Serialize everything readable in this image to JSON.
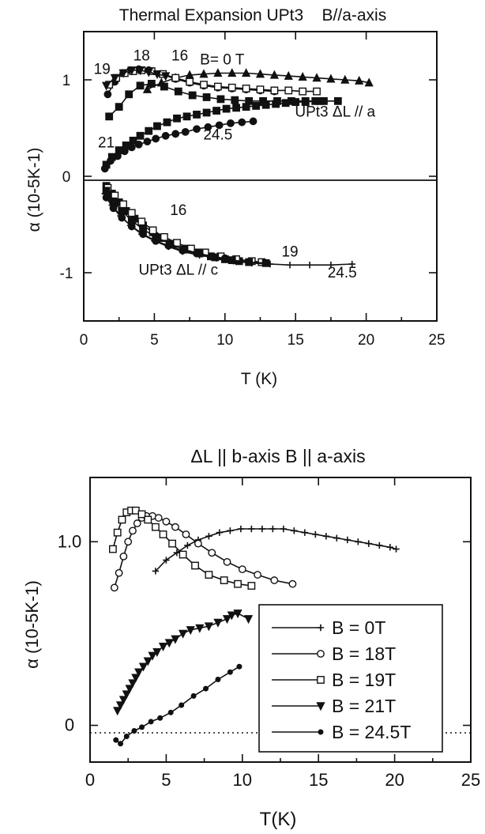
{
  "chart_data": [
    {
      "type": "line",
      "title": "Thermal Expansion UPt3    B//a-axis",
      "xlabel": "T (K)",
      "ylabel": "α (10-5K-1)",
      "xlim": [
        0,
        25
      ],
      "ylim": [
        -1.5,
        1.5
      ],
      "xticks": [
        "0",
        "5",
        "10",
        "15",
        "20",
        "25"
      ],
      "yticks": [
        {
          "value": 1,
          "label": "1"
        },
        {
          "value": 0,
          "label": "0"
        },
        {
          "value": -1,
          "label": "-1"
        }
      ],
      "grid": false,
      "zero_line": "solid",
      "annotations": [
        {
          "text": "B= 0 T",
          "x": 9.8,
          "y": 1.16
        },
        {
          "text": "19",
          "x": 1.3,
          "y": 1.06
        },
        {
          "text": "18",
          "x": 4.1,
          "y": 1.2
        },
        {
          "text": "16",
          "x": 6.8,
          "y": 1.2
        },
        {
          "text": "UPt3  ΔL // a",
          "x": 17.8,
          "y": 0.62
        },
        {
          "text": "21",
          "x": 1.6,
          "y": 0.3
        },
        {
          "text": "24.5",
          "x": 9.5,
          "y": 0.38
        },
        {
          "text": "16",
          "x": 6.7,
          "y": -0.4
        },
        {
          "text": "19",
          "x": 14.6,
          "y": -0.83
        },
        {
          "text": "UPt3  ΔL // c",
          "x": 6.7,
          "y": -1.02
        },
        {
          "text": "24.5",
          "x": 18.3,
          "y": -1.05
        }
      ],
      "series": [
        {
          "marker": "triangle-up",
          "x": [
            4.5,
            5.5,
            6.5,
            7.5,
            8.5,
            9.5,
            10.5,
            11.5,
            12.5,
            13.5,
            14.5,
            15.5,
            16.5,
            17.5,
            18.5,
            19.5,
            20.2
          ],
          "y": [
            0.9,
            0.97,
            1.02,
            1.05,
            1.06,
            1.07,
            1.07,
            1.07,
            1.06,
            1.05,
            1.04,
            1.03,
            1.02,
            1.01,
            1.0,
            0.99,
            0.97
          ]
        },
        {
          "marker": "circle",
          "x": [
            1.7,
            2.2,
            2.8,
            3.3,
            3.9,
            4.6,
            5.5,
            6.5,
            7.5,
            8.5,
            9.5,
            10.5,
            11.5,
            12.5,
            13.5
          ],
          "y": [
            0.85,
            0.98,
            1.07,
            1.1,
            1.11,
            1.1,
            1.06,
            1.01,
            0.97,
            0.94,
            0.92,
            0.91,
            0.9,
            0.89,
            0.88
          ]
        },
        {
          "marker": "square-open",
          "x": [
            1.8,
            2.3,
            2.9,
            3.5,
            4.1,
            4.8,
            5.6,
            6.5,
            7.5,
            8.5,
            9.5,
            10.5,
            11.5,
            12.5,
            13.5,
            14.5,
            15.5,
            16.5
          ],
          "y": [
            0.95,
            1.02,
            1.07,
            1.09,
            1.1,
            1.09,
            1.06,
            1.02,
            0.98,
            0.95,
            0.93,
            0.92,
            0.91,
            0.9,
            0.89,
            0.89,
            0.88,
            0.88
          ]
        },
        {
          "marker": "triangle-down",
          "x": [
            1.6,
            2.2,
            2.8,
            3.4,
            4.0,
            4.6,
            5.2,
            5.8
          ],
          "y": [
            0.94,
            1.02,
            1.07,
            1.1,
            1.1,
            1.08,
            1.06,
            1.04
          ]
        },
        {
          "marker": "square",
          "x": [
            1.8,
            2.5,
            3.2,
            4.0,
            4.8,
            5.7,
            6.7,
            7.7,
            8.7,
            9.7,
            10.7,
            11.7,
            12.7,
            13.7,
            14.7,
            15.7,
            16.7,
            18.0
          ],
          "y": [
            0.62,
            0.72,
            0.85,
            0.94,
            0.96,
            0.93,
            0.88,
            0.84,
            0.82,
            0.8,
            0.79,
            0.78,
            0.78,
            0.78,
            0.78,
            0.78,
            0.78,
            0.78
          ]
        },
        {
          "marker": "square",
          "x": [
            1.6,
            2.0,
            2.5,
            3.0,
            3.5,
            4.0,
            4.6,
            5.2,
            5.9,
            6.6,
            7.3,
            8.0,
            8.7,
            9.4,
            10.1,
            10.8,
            11.5,
            12.2,
            12.9,
            13.6,
            14.3,
            15.0,
            15.7,
            16.4,
            17.0
          ],
          "y": [
            0.12,
            0.2,
            0.27,
            0.32,
            0.37,
            0.42,
            0.47,
            0.52,
            0.56,
            0.6,
            0.62,
            0.64,
            0.66,
            0.68,
            0.7,
            0.71,
            0.72,
            0.73,
            0.74,
            0.75,
            0.76,
            0.77,
            0.77,
            0.78,
            0.78
          ]
        },
        {
          "marker": "circle",
          "x": [
            1.5,
            1.9,
            2.4,
            2.9,
            3.4,
            3.9,
            4.5,
            5.1,
            5.8,
            6.5,
            7.2,
            8.0,
            8.8,
            9.6,
            10.4,
            11.2,
            12.0
          ],
          "y": [
            0.08,
            0.16,
            0.21,
            0.26,
            0.3,
            0.33,
            0.36,
            0.39,
            0.42,
            0.44,
            0.46,
            0.49,
            0.51,
            0.53,
            0.55,
            0.56,
            0.57
          ]
        },
        {
          "marker": "square",
          "x": [
            1.6,
            2.0,
            2.5,
            3.0,
            3.6,
            4.2,
            4.9,
            5.6,
            6.4,
            7.2,
            8.1,
            9.0,
            10.0,
            11.0
          ],
          "y": [
            -0.1,
            -0.18,
            -0.27,
            -0.36,
            -0.44,
            -0.51,
            -0.58,
            -0.64,
            -0.7,
            -0.75,
            -0.79,
            -0.83,
            -0.86,
            -0.88
          ]
        },
        {
          "marker": "square-open",
          "x": [
            1.7,
            2.2,
            2.8,
            3.4,
            4.1,
            4.9,
            5.7,
            6.6,
            7.6,
            8.6,
            9.7,
            10.8,
            11.9,
            12.6
          ],
          "y": [
            -0.12,
            -0.2,
            -0.29,
            -0.38,
            -0.47,
            -0.56,
            -0.63,
            -0.69,
            -0.75,
            -0.79,
            -0.83,
            -0.86,
            -0.88,
            -0.89
          ]
        },
        {
          "marker": "square",
          "x": [
            1.6,
            2.1,
            2.7,
            3.4,
            4.2,
            5.1,
            6.1,
            7.1,
            8.2,
            9.3,
            10.5,
            11.7,
            12.9
          ],
          "y": [
            -0.15,
            -0.26,
            -0.36,
            -0.46,
            -0.55,
            -0.63,
            -0.7,
            -0.76,
            -0.8,
            -0.84,
            -0.87,
            -0.89,
            -0.9
          ]
        },
        {
          "marker": "plus",
          "x": [
            1.5,
            2.0,
            2.6,
            3.3,
            4.1,
            5.0,
            6.0,
            7.0,
            8.2,
            9.4,
            10.6,
            11.9,
            13.2,
            14.6,
            16.0,
            17.5,
            19.0
          ],
          "y": [
            -0.18,
            -0.3,
            -0.41,
            -0.51,
            -0.6,
            -0.67,
            -0.73,
            -0.78,
            -0.82,
            -0.85,
            -0.88,
            -0.9,
            -0.91,
            -0.92,
            -0.92,
            -0.92,
            -0.91
          ]
        },
        {
          "marker": "circle",
          "x": [
            1.6,
            2.1,
            2.7,
            3.4,
            4.2,
            5.1,
            6.0,
            7.0,
            8.0,
            9.0,
            10.0
          ],
          "y": [
            -0.22,
            -0.33,
            -0.43,
            -0.52,
            -0.6,
            -0.67,
            -0.72,
            -0.77,
            -0.8,
            -0.83,
            -0.85
          ]
        }
      ]
    },
    {
      "type": "line",
      "title": "ΔL || b-axis B || a-axis",
      "xlabel": "T(K)",
      "ylabel": "α (10-5K-1)",
      "xlim": [
        0,
        25
      ],
      "ylim": [
        -0.2,
        1.35
      ],
      "xticks": [
        "0",
        "5",
        "10",
        "15",
        "20",
        "25"
      ],
      "yticks": [
        {
          "value": 1,
          "label": "1.0"
        },
        {
          "value": 0,
          "label": "0"
        }
      ],
      "grid": false,
      "zero_line": "dotted",
      "legend": "lower-right",
      "series": [
        {
          "name": "B = 0T",
          "marker": "plus",
          "x": [
            4.3,
            5.0,
            5.7,
            6.4,
            7.1,
            7.8,
            8.5,
            9.2,
            9.9,
            10.6,
            11.3,
            12.0,
            12.7,
            13.4,
            14.1,
            14.8,
            15.5,
            16.2,
            16.9,
            17.6,
            18.3,
            19.0,
            19.7,
            20.1
          ],
          "y": [
            0.84,
            0.9,
            0.94,
            0.98,
            1.01,
            1.03,
            1.05,
            1.06,
            1.07,
            1.07,
            1.07,
            1.07,
            1.07,
            1.06,
            1.05,
            1.04,
            1.03,
            1.02,
            1.01,
            1.0,
            0.99,
            0.98,
            0.97,
            0.96
          ]
        },
        {
          "name": "B = 18T",
          "marker": "circle-open",
          "x": [
            1.6,
            1.9,
            2.2,
            2.5,
            2.8,
            3.1,
            3.4,
            3.7,
            4.1,
            4.5,
            5.0,
            5.6,
            6.3,
            7.1,
            8.0,
            9.0,
            10.0,
            11.0,
            12.1,
            13.3
          ],
          "y": [
            0.75,
            0.83,
            0.92,
            1.0,
            1.06,
            1.1,
            1.13,
            1.14,
            1.14,
            1.13,
            1.11,
            1.08,
            1.04,
            0.99,
            0.94,
            0.89,
            0.85,
            0.82,
            0.79,
            0.77
          ]
        },
        {
          "name": "B = 19T",
          "marker": "square-open",
          "x": [
            1.5,
            1.8,
            2.1,
            2.4,
            2.7,
            3.0,
            3.4,
            3.8,
            4.3,
            4.8,
            5.4,
            6.1,
            6.9,
            7.8,
            8.8,
            9.7,
            10.6
          ],
          "y": [
            0.96,
            1.05,
            1.12,
            1.16,
            1.17,
            1.17,
            1.15,
            1.12,
            1.08,
            1.04,
            0.99,
            0.93,
            0.87,
            0.82,
            0.79,
            0.77,
            0.76
          ]
        },
        {
          "name": "B = 21T",
          "marker": "triangle-down",
          "x": [
            1.8,
            2.0,
            2.2,
            2.4,
            2.6,
            2.8,
            3.0,
            3.2,
            3.5,
            3.8,
            4.1,
            4.4,
            4.8,
            5.2,
            5.6,
            6.1,
            6.6,
            7.2,
            7.8,
            8.4,
            9.0,
            9.3,
            9.7,
            10.4
          ],
          "y": [
            0.08,
            0.11,
            0.14,
            0.17,
            0.2,
            0.23,
            0.26,
            0.29,
            0.32,
            0.35,
            0.38,
            0.4,
            0.43,
            0.45,
            0.47,
            0.5,
            0.52,
            0.53,
            0.54,
            0.56,
            0.58,
            0.6,
            0.61,
            0.58
          ]
        },
        {
          "name": "B = 24.5T",
          "marker": "dot",
          "x": [
            1.7,
            2.0,
            2.4,
            2.9,
            3.4,
            4.0,
            4.6,
            5.3,
            6.0,
            6.8,
            7.6,
            8.4,
            9.2,
            9.8
          ],
          "y": [
            -0.08,
            -0.1,
            -0.06,
            -0.03,
            -0.01,
            0.02,
            0.04,
            0.07,
            0.11,
            0.16,
            0.2,
            0.25,
            0.29,
            0.32
          ]
        }
      ]
    }
  ]
}
